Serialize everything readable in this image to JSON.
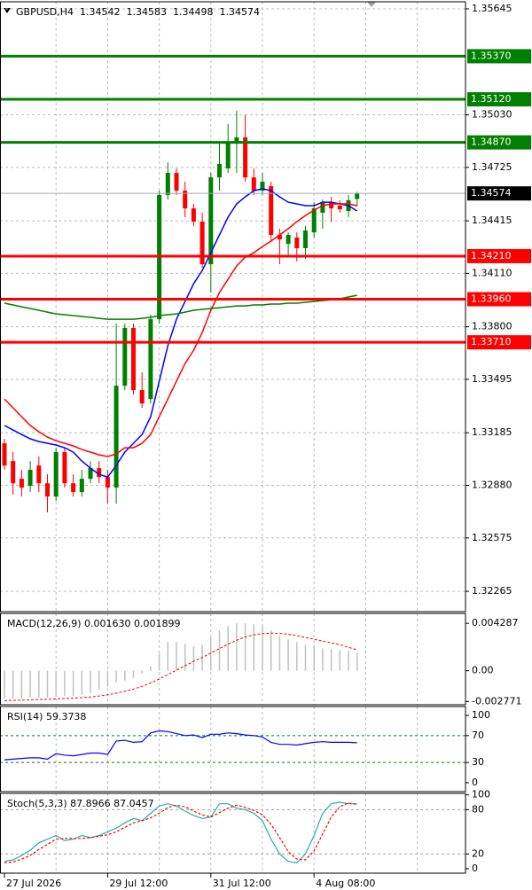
{
  "chart_data": [
    {
      "type": "candlestick",
      "symbol": "GBPUSD,H4",
      "categories": [
        "27 Jul 2026",
        null,
        null,
        null,
        null,
        null,
        null,
        null,
        null,
        null,
        null,
        null,
        "29 Jul 12:00",
        null,
        null,
        null,
        null,
        null,
        null,
        null,
        null,
        null,
        null,
        null,
        "31 Jul 12:00",
        null,
        null,
        null,
        null,
        null,
        null,
        null,
        null,
        null,
        null,
        null,
        "4 Aug 08:00",
        null,
        null,
        null,
        null,
        null
      ],
      "candles": [
        [
          1.33124,
          1.3315,
          1.3297,
          1.32995
        ],
        [
          1.33021,
          1.33073,
          1.32826,
          1.32892
        ],
        [
          1.32918,
          1.3297,
          1.32815,
          1.32867
        ],
        [
          1.32877,
          1.33021,
          1.32841,
          1.3297
        ],
        [
          1.32995,
          1.33047,
          1.32841,
          1.32892
        ],
        [
          1.32892,
          1.32944,
          1.32723,
          1.32815
        ],
        [
          1.32815,
          1.33098,
          1.3279,
          1.33073
        ],
        [
          1.33073,
          1.33098,
          1.32867,
          1.32892
        ],
        [
          1.32892,
          1.32944,
          1.32815,
          1.32841
        ],
        [
          1.32841,
          1.3297,
          1.32815,
          1.32918
        ],
        [
          1.32918,
          1.33021,
          1.32892,
          1.3298
        ],
        [
          1.3298,
          1.33021,
          1.32892,
          1.32928
        ],
        [
          1.32928,
          1.3297,
          1.32774,
          1.32867
        ],
        [
          1.32867,
          1.33819,
          1.32774,
          1.33458
        ],
        [
          1.33458,
          1.33819,
          1.33433,
          1.33793
        ],
        [
          1.33793,
          1.33819,
          1.33407,
          1.33433
        ],
        [
          1.33433,
          1.33536,
          1.3333,
          1.33355
        ],
        [
          1.33381,
          1.3387,
          1.33355,
          1.33844
        ],
        [
          1.33844,
          1.3459,
          1.33819,
          1.34565
        ],
        [
          1.34565,
          1.34755,
          1.34539,
          1.34693
        ],
        [
          1.34693,
          1.34719,
          1.34565,
          1.3459
        ],
        [
          1.3459,
          1.34642,
          1.34436,
          1.34487
        ],
        [
          1.34487,
          1.34513,
          1.34385,
          1.3441
        ],
        [
          1.3441,
          1.34462,
          1.34143,
          1.34163
        ],
        [
          1.34163,
          1.34693,
          1.33999,
          1.34667
        ],
        [
          1.34667,
          1.34873,
          1.3459,
          1.34745
        ],
        [
          1.34719,
          1.34976,
          1.34693,
          1.34873
        ],
        [
          1.34873,
          1.35053,
          1.34693,
          1.34899
        ],
        [
          1.34899,
          1.35028,
          1.34642,
          1.34667
        ],
        [
          1.34667,
          1.34719,
          1.34565,
          1.3459
        ],
        [
          1.3459,
          1.34693,
          1.34565,
          1.34642
        ],
        [
          1.34616,
          1.34642,
          1.34297,
          1.34333
        ],
        [
          1.34333,
          1.34369,
          1.34163,
          1.34307
        ],
        [
          1.34281,
          1.34348,
          1.34204,
          1.34333
        ],
        [
          1.34318,
          1.34348,
          1.34179,
          1.34256
        ],
        [
          1.34256,
          1.34385,
          1.34194,
          1.34359
        ],
        [
          1.34348,
          1.34523,
          1.34318,
          1.34487
        ],
        [
          1.34462,
          1.34539,
          1.34369,
          1.34523
        ],
        [
          1.34523,
          1.34554,
          1.3441,
          1.34487
        ],
        [
          1.34503,
          1.34534,
          1.34462,
          1.34482
        ],
        [
          1.34472,
          1.34565,
          1.34436,
          1.34534
        ],
        [
          1.34542,
          1.34583,
          1.34498,
          1.34574
        ]
      ],
      "up_color": "#008000",
      "down_color": "#ff0000",
      "series": [
        {
          "color": "#0000ff",
          "values": [
            1.33227,
            1.33201,
            1.33175,
            1.3315,
            1.33134,
            1.33124,
            1.33114,
            1.33098,
            1.33073,
            1.33021,
            1.3298,
            1.32944,
            1.32928,
            1.32995,
            1.33073,
            1.33124,
            1.33175,
            1.33278,
            1.33484,
            1.3369,
            1.33844,
            1.33947,
            1.3405,
            1.34127,
            1.3423,
            1.34333,
            1.34436,
            1.34513,
            1.34554,
            1.3459,
            1.34601,
            1.3459,
            1.34554,
            1.34523,
            1.34513,
            1.34503,
            1.34503,
            1.34523,
            1.34523,
            1.34513,
            1.34503,
            1.34472
          ]
        },
        {
          "color": "#ff0000",
          "values": [
            1.33381,
            1.3333,
            1.33278,
            1.33227,
            1.33191,
            1.3316,
            1.33139,
            1.33124,
            1.33109,
            1.33088,
            1.33073,
            1.33057,
            1.33047,
            1.33062,
            1.33098,
            1.33098,
            1.33124,
            1.33175,
            1.33278,
            1.33381,
            1.33484,
            1.33587,
            1.33664,
            1.33767,
            1.33896,
            1.33999,
            1.34076,
            1.34153,
            1.34204,
            1.3423,
            1.34266,
            1.34297,
            1.34333,
            1.34369,
            1.3441,
            1.34446,
            1.34477,
            1.34503,
            1.34513,
            1.34513,
            1.34513,
            1.34503
          ]
        },
        {
          "color": "#008000",
          "values": [
            1.33937,
            1.33927,
            1.33916,
            1.33906,
            1.33896,
            1.33885,
            1.33875,
            1.3387,
            1.33865,
            1.3386,
            1.33855,
            1.33849,
            1.33844,
            1.33844,
            1.33844,
            1.33844,
            1.33849,
            1.33855,
            1.33865,
            1.3387,
            1.33875,
            1.33885,
            1.33896,
            1.33901,
            1.33906,
            1.33911,
            1.33916,
            1.33921,
            1.33921,
            1.33927,
            1.33927,
            1.33932,
            1.33932,
            1.33937,
            1.33937,
            1.33942,
            1.33947,
            1.33952,
            1.33957,
            1.33963,
            1.33973,
            1.33983
          ]
        }
      ],
      "levels": [
        {
          "value": 1.3537,
          "label": "1.35370",
          "color": "#008000"
        },
        {
          "value": 1.3512,
          "label": "1.35120",
          "color": "#008000"
        },
        {
          "value": 1.3487,
          "label": "1.34870",
          "color": "#008000"
        },
        {
          "value": 1.3421,
          "label": "1.34210",
          "color": "#ff0000"
        },
        {
          "value": 1.3396,
          "label": "1.33960",
          "color": "#ff0000"
        },
        {
          "value": 1.3371,
          "label": "1.33710",
          "color": "#ff0000"
        }
      ],
      "ylim": [
        1.32147,
        1.35686
      ],
      "yticks": [
        1.35645,
        {
          "value": 1.3503,
          "label": "1.35030"
        },
        1.34725,
        1.34415,
        {
          "value": 1.3411,
          "label": "1.34110"
        },
        {
          "value": 1.338,
          "label": "1.33800"
        },
        1.33495,
        1.33185,
        {
          "value": 1.3288,
          "label": "1.32880"
        },
        1.32575,
        1.32265
      ],
      "grid": true
    },
    {
      "type": "macd",
      "title": "MACD(12,26,9) 0.001630 0.001899",
      "series": [
        {
          "color": "#c0c0c0",
          "style": "histogram",
          "values": [
            -0.00251,
            -0.00251,
            -0.00251,
            -0.00243,
            -0.00243,
            -0.00243,
            -0.00235,
            -0.00226,
            -0.00226,
            -0.00218,
            -0.00202,
            -0.0017,
            -0.00146,
            -0.00105,
            -0.00089,
            -0.00065,
            -0.00024,
            0.0004,
            0.00154,
            0.00259,
            0.00259,
            0.00243,
            0.00218,
            0.00235,
            0.00299,
            0.00364,
            0.00404,
            0.00428,
            0.00428,
            0.0042,
            0.00404,
            0.00364,
            0.00315,
            0.00283,
            0.00259,
            0.00235,
            0.00218,
            0.00202,
            0.00194,
            0.00186,
            0.00178,
            0.00163
          ]
        },
        {
          "color": "#ff0000",
          "style": "dashed",
          "values": [
            -0.0027,
            -0.00268,
            -0.00266,
            -0.00263,
            -0.0026,
            -0.00258,
            -0.00255,
            -0.00251,
            -0.00247,
            -0.00243,
            -0.00237,
            -0.00228,
            -0.00218,
            -0.00203,
            -0.00186,
            -0.00166,
            -0.00141,
            -0.0011,
            -0.00075,
            -0.00035,
            5e-05,
            0.00045,
            0.00085,
            0.0012,
            0.0016,
            0.002,
            0.0024,
            0.00275,
            0.00305,
            0.00325,
            0.00335,
            0.0034,
            0.00338,
            0.0033,
            0.00318,
            0.00302,
            0.00285,
            0.00268,
            0.00252,
            0.00235,
            0.00212,
            0.001899
          ]
        }
      ],
      "ylim": [
        -0.00307,
        0.00518
      ],
      "yticks": [
        0.004287,
        {
          "value": 0,
          "label": "0.00"
        },
        -0.002771
      ]
    },
    {
      "type": "line",
      "title": "RSI(14) 59.3738",
      "series": [
        {
          "color": "#0000ff",
          "values": [
            34,
            35,
            36,
            37,
            37,
            35,
            43,
            41,
            40,
            42,
            44,
            44,
            42,
            62,
            63,
            60,
            61,
            74,
            77,
            76,
            73,
            70,
            71,
            67,
            72,
            72,
            74,
            73,
            71,
            70,
            68,
            60,
            57,
            57,
            56,
            58,
            60,
            61,
            60,
            60,
            60,
            59.3738
          ]
        }
      ],
      "levels": [
        70,
        30
      ],
      "level_color": "#008000",
      "ylim": [
        -13.3,
        113.3
      ],
      "yticks": [
        100,
        70,
        30,
        0
      ]
    },
    {
      "type": "line",
      "title": "Stoch(5,3,3) 87.8966 87.0457",
      "series": [
        {
          "color": "#20b2aa",
          "values": [
            10,
            12,
            18,
            25,
            35,
            40,
            45,
            38,
            40,
            45,
            42,
            45,
            50,
            55,
            62,
            68,
            65,
            75,
            85,
            88,
            85,
            78,
            72,
            68,
            70,
            88,
            88,
            82,
            80,
            75,
            65,
            40,
            20,
            10,
            8,
            20,
            45,
            75,
            88,
            90,
            88,
            87.8966
          ]
        },
        {
          "color": "#ff0000",
          "style": "dashed",
          "values": [
            8,
            9,
            13,
            18,
            26,
            33,
            40,
            41,
            41,
            41,
            42,
            44,
            46,
            50,
            56,
            62,
            65,
            69,
            75,
            83,
            86,
            84,
            78,
            73,
            70,
            76,
            82,
            86,
            83,
            79,
            73,
            60,
            42,
            23,
            13,
            12,
            24,
            47,
            70,
            84,
            89,
            87.0457
          ]
        }
      ],
      "levels": [
        80,
        20
      ],
      "level_color": "#a0a0a0",
      "ylim": [
        -6,
        102
      ],
      "yticks": [
        100,
        80,
        20,
        0
      ]
    }
  ]
}
